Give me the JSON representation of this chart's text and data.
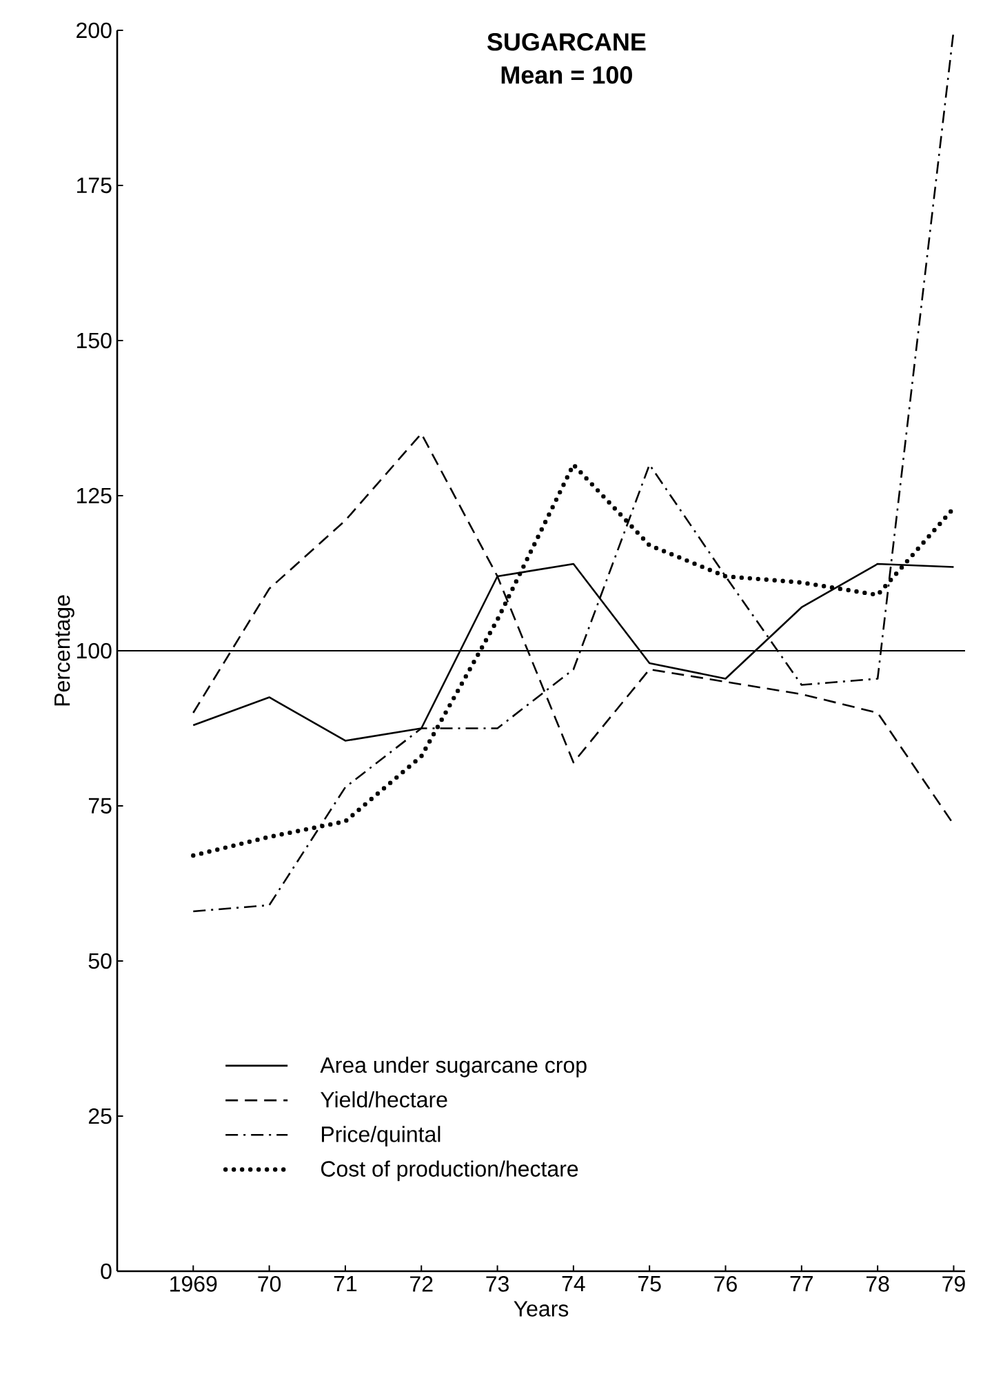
{
  "chart_data": {
    "type": "line",
    "title": "SUGARCANE",
    "subtitle": "Mean = 100",
    "xlabel": "Years",
    "ylabel": "Percentage",
    "categories": [
      "1969",
      "70",
      "71",
      "72",
      "73",
      "74",
      "75",
      "76",
      "77",
      "78",
      "79"
    ],
    "series": [
      {
        "name": "Area under sugarcane crop",
        "color": "#000000",
        "line_style": "solid",
        "values": [
          88,
          92.5,
          85.5,
          87.5,
          112,
          114,
          98,
          95.5,
          107,
          114,
          113.5
        ]
      },
      {
        "name": "Yield/hectare",
        "color": "#000000",
        "line_style": "dashed",
        "values": [
          90,
          110,
          121,
          135,
          112,
          82,
          97,
          95,
          93,
          90,
          72
        ]
      },
      {
        "name": "Price/quintal",
        "color": "#000000",
        "line_style": "dashdot",
        "values": [
          58,
          59,
          78,
          87.5,
          87.5,
          97,
          130,
          112,
          94.5,
          95.5,
          200
        ]
      },
      {
        "name": "Cost of production/hectare",
        "color": "#000000",
        "line_style": "dotted",
        "values": [
          67,
          70,
          72.5,
          83,
          105,
          130,
          117,
          112,
          111,
          109,
          123
        ]
      }
    ],
    "ylim": [
      0,
      200
    ],
    "yticks": [
      0,
      25,
      50,
      75,
      100,
      125,
      150,
      175,
      200
    ],
    "ref_lines": [
      {
        "axis": "y",
        "value": 100
      }
    ],
    "grid": false,
    "legend": "bottom"
  }
}
